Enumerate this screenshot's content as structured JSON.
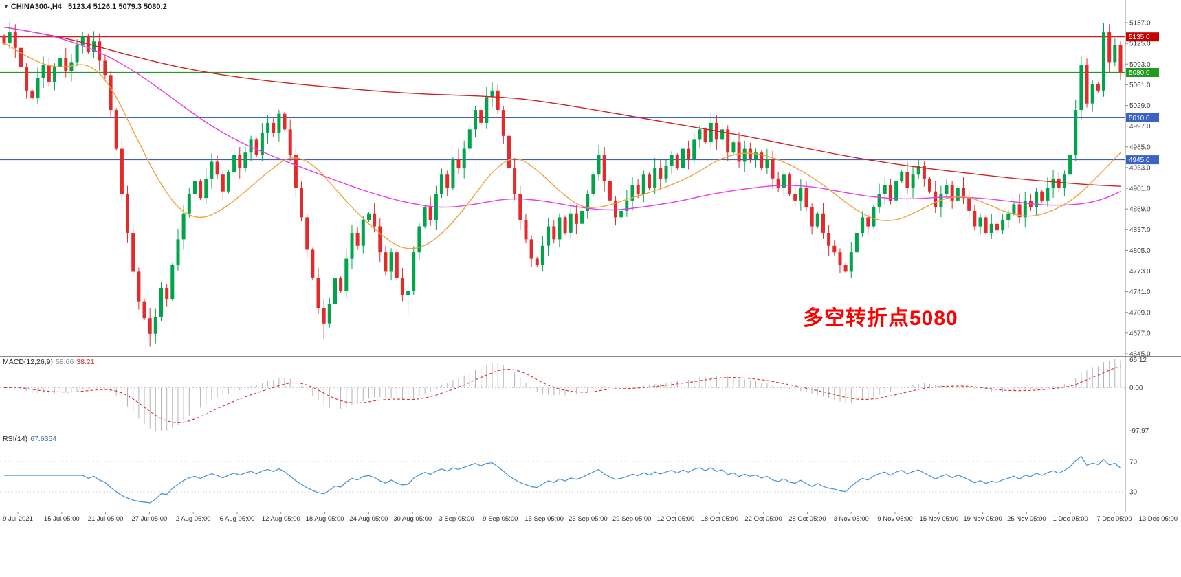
{
  "header": {
    "collapse_icon": "▼",
    "symbol": "CHINA300-,H4",
    "ohlc": "5123.4 5126.1 5079.3 5080.2"
  },
  "annotation": {
    "text": "多空转折点5080",
    "color": "#ff0000"
  },
  "macd": {
    "label": "MACD(12,26,9)",
    "value_main": "58.66",
    "value_signal": "38.21"
  },
  "rsi": {
    "label": "RSI(14)",
    "value": "67.6354"
  },
  "chart_data": {
    "type": "candlestick",
    "symbol": "CHINA300-",
    "timeframe": "H4",
    "current_bar": {
      "open": 5123.4,
      "high": 5126.1,
      "low": 5079.3,
      "close": 5080.2
    },
    "y_axis": {
      "min": 4645.0,
      "max": 5157.0
    },
    "price_axis_labels": [
      "5157.0",
      "5125.0",
      "5093.0",
      "5061.0",
      "5029.0",
      "4997.0",
      "4965.0",
      "4933.0",
      "4901.0",
      "4869.0",
      "4837.0",
      "4805.0",
      "4773.0",
      "4741.0",
      "4709.0",
      "4677.0",
      "4645.0"
    ],
    "time_labels": [
      "9 Jul 2021",
      "15 Jul 05:00",
      "21 Jul 05:00",
      "27 Jul 05:00",
      "2 Aug 05:00",
      "6 Aug 05:00",
      "12 Aug 05:00",
      "18 Aug 05:00",
      "24 Aug 05:00",
      "30 Aug 05:00",
      "3 Sep 05:00",
      "9 Sep 05:00",
      "15 Sep 05:00",
      "23 Sep 05:00",
      "29 Sep 05:00",
      "12 Oct 05:00",
      "18 Oct 05:00",
      "22 Oct 05:00",
      "28 Oct 05:00",
      "3 Nov 05:00",
      "9 Nov 05:00",
      "15 Nov 05:00",
      "19 Nov 05:00",
      "25 Nov 05:00",
      "1 Dec 05:00",
      "7 Dec 05:00",
      "13 Dec 05:00"
    ],
    "levels": [
      {
        "price": 5135.0,
        "label": "5135.0",
        "color": "#c40000"
      },
      {
        "price": 5080.0,
        "label": "5080.0",
        "color": "#1f9b1f"
      },
      {
        "price": 5010.0,
        "label": "5010.0",
        "color": "#3b63c4"
      },
      {
        "price": 4945.0,
        "label": "4945.0",
        "color": "#3b63c4"
      }
    ],
    "colors": {
      "up": "#00a44a",
      "down": "#e42a2a"
    },
    "closes": [
      5125,
      5142,
      5118,
      5088,
      5052,
      5040,
      5072,
      5092,
      5065,
      5088,
      5102,
      5082,
      5096,
      5122,
      5136,
      5112,
      5128,
      5098,
      5076,
      5022,
      4962,
      4892,
      4832,
      4772,
      4726,
      4700,
      4676,
      4702,
      4746,
      4730,
      4782,
      4822,
      4862,
      4892,
      4912,
      4886,
      4916,
      4942,
      4922,
      4896,
      4926,
      4952,
      4932,
      4956,
      4976,
      4952,
      4986,
      5002,
      4986,
      5016,
      4992,
      4952,
      4902,
      4856,
      4806,
      4762,
      4716,
      4692,
      4722,
      4762,
      4742,
      4792,
      4832,
      4812,
      4852,
      4862,
      4842,
      4802,
      4772,
      4802,
      4762,
      4736,
      4742,
      4802,
      4842,
      4872,
      4852,
      4892,
      4922,
      4902,
      4946,
      4932,
      4962,
      4992,
      5022,
      5002,
      5042,
      5052,
      5022,
      4982,
      4932,
      4892,
      4852,
      4822,
      4792,
      4782,
      4812,
      4842,
      4822,
      4856,
      4832,
      4862,
      4846,
      4866,
      4892,
      4922,
      4952,
      4912,
      4882,
      4856,
      4866,
      4882,
      4906,
      4892,
      4922,
      4902,
      4932,
      4916,
      4936,
      4952,
      4932,
      4962,
      4946,
      4976,
      4992,
      4972,
      5002,
      4976,
      4992,
      4956,
      4972,
      4942,
      4962,
      4946,
      4956,
      4932,
      4946,
      4916,
      4902,
      4922,
      4892,
      4882,
      4902,
      4872,
      4842,
      4862,
      4832,
      4812,
      4802,
      4782,
      4772,
      4802,
      4832,
      4856,
      4842,
      4872,
      4892,
      4906,
      4882,
      4912,
      4926,
      4902,
      4922,
      4936,
      4916,
      4896,
      4872,
      4892,
      4906,
      4882,
      4902,
      4886,
      4866,
      4842,
      4856,
      4832,
      4846,
      4836,
      4852,
      4862,
      4876,
      4856,
      4882,
      4872,
      4896,
      4882,
      4902,
      4916,
      4902,
      4922,
      4952,
      5022,
      5092,
      5032,
      5062,
      5052,
      5142,
      5096,
      5123,
      5080.2
    ],
    "extremes": [
      {
        "index": 26,
        "low": 4656
      },
      {
        "index": 57,
        "low": 4668
      },
      {
        "index": 72,
        "low": 4704
      },
      {
        "index": 196,
        "high": 5157
      }
    ],
    "moving_averages": [
      {
        "name": "slow",
        "color": "#cc2222",
        "waypoints": [
          [
            0,
            5150
          ],
          [
            10,
            5136
          ],
          [
            20,
            5112
          ],
          [
            28,
            5094
          ],
          [
            36,
            5080
          ],
          [
            44,
            5070
          ],
          [
            52,
            5062
          ],
          [
            60,
            5056
          ],
          [
            68,
            5050
          ],
          [
            76,
            5046
          ],
          [
            84,
            5044
          ],
          [
            92,
            5040
          ],
          [
            100,
            5030
          ],
          [
            108,
            5018
          ],
          [
            116,
            5006
          ],
          [
            124,
            4994
          ],
          [
            132,
            4982
          ],
          [
            140,
            4968
          ],
          [
            148,
            4954
          ],
          [
            156,
            4942
          ],
          [
            164,
            4932
          ],
          [
            172,
            4924
          ],
          [
            180,
            4916
          ],
          [
            188,
            4910
          ],
          [
            194,
            4906
          ],
          [
            199,
            4904
          ]
        ]
      },
      {
        "name": "medium",
        "color": "#e83ae8",
        "waypoints": [
          [
            0,
            5150
          ],
          [
            6,
            5142
          ],
          [
            12,
            5128
          ],
          [
            18,
            5108
          ],
          [
            24,
            5078
          ],
          [
            30,
            5040
          ],
          [
            36,
            5002
          ],
          [
            42,
            4972
          ],
          [
            48,
            4950
          ],
          [
            54,
            4930
          ],
          [
            60,
            4910
          ],
          [
            66,
            4892
          ],
          [
            72,
            4878
          ],
          [
            78,
            4870
          ],
          [
            84,
            4876
          ],
          [
            90,
            4886
          ],
          [
            96,
            4882
          ],
          [
            102,
            4872
          ],
          [
            108,
            4866
          ],
          [
            114,
            4872
          ],
          [
            120,
            4880
          ],
          [
            126,
            4892
          ],
          [
            132,
            4900
          ],
          [
            138,
            4906
          ],
          [
            144,
            4904
          ],
          [
            150,
            4894
          ],
          [
            156,
            4886
          ],
          [
            162,
            4884
          ],
          [
            168,
            4888
          ],
          [
            174,
            4886
          ],
          [
            180,
            4880
          ],
          [
            186,
            4874
          ],
          [
            192,
            4876
          ],
          [
            196,
            4884
          ],
          [
            199,
            4896
          ]
        ]
      },
      {
        "name": "fast",
        "color": "#eea23c",
        "waypoints": [
          [
            0,
            5126
          ],
          [
            5,
            5098
          ],
          [
            10,
            5086
          ],
          [
            15,
            5096
          ],
          [
            19,
            5060
          ],
          [
            23,
            4990
          ],
          [
            27,
            4920
          ],
          [
            31,
            4868
          ],
          [
            35,
            4852
          ],
          [
            39,
            4868
          ],
          [
            43,
            4896
          ],
          [
            47,
            4926
          ],
          [
            51,
            4952
          ],
          [
            55,
            4940
          ],
          [
            59,
            4900
          ],
          [
            63,
            4862
          ],
          [
            67,
            4830
          ],
          [
            71,
            4806
          ],
          [
            75,
            4810
          ],
          [
            79,
            4838
          ],
          [
            83,
            4880
          ],
          [
            87,
            4928
          ],
          [
            91,
            4952
          ],
          [
            95,
            4930
          ],
          [
            99,
            4896
          ],
          [
            103,
            4870
          ],
          [
            107,
            4872
          ],
          [
            111,
            4884
          ],
          [
            115,
            4894
          ],
          [
            119,
            4906
          ],
          [
            123,
            4922
          ],
          [
            127,
            4944
          ],
          [
            131,
            4956
          ],
          [
            135,
            4954
          ],
          [
            139,
            4942
          ],
          [
            143,
            4924
          ],
          [
            147,
            4900
          ],
          [
            151,
            4872
          ],
          [
            155,
            4852
          ],
          [
            159,
            4850
          ],
          [
            163,
            4866
          ],
          [
            167,
            4884
          ],
          [
            171,
            4890
          ],
          [
            175,
            4878
          ],
          [
            179,
            4862
          ],
          [
            183,
            4856
          ],
          [
            187,
            4866
          ],
          [
            191,
            4886
          ],
          [
            195,
            4920
          ],
          [
            199,
            4956
          ]
        ]
      }
    ],
    "macd": {
      "fast": 12,
      "slow": 26,
      "signal": 9,
      "current": 58.66,
      "current_signal": 38.21,
      "axis_labels": [
        "66.12",
        "0.00",
        "-97.97"
      ]
    },
    "rsi": {
      "period": 14,
      "current": 67.6354,
      "levels": [
        70,
        30
      ],
      "axis_labels": [
        "70",
        "30"
      ]
    }
  }
}
